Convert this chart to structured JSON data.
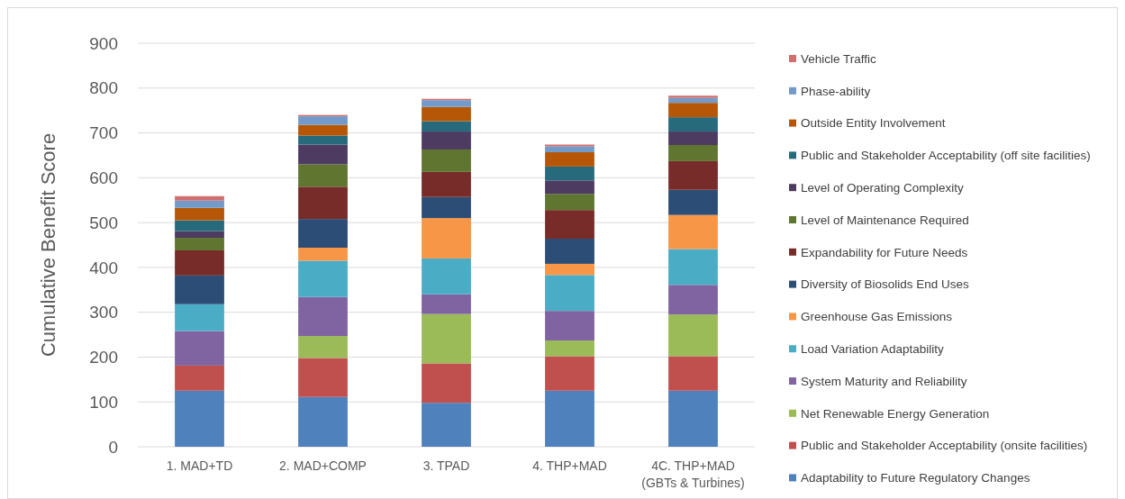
{
  "chart_data": {
    "type": "bar",
    "stacked": true,
    "ylabel": "Cumulative Benefit Score",
    "categories": [
      "1. MAD+TD",
      "2. MAD+COMP",
      "3. TPAD",
      "4. THP+MAD",
      "4C. THP+MAD (GBTs & Turbines)"
    ],
    "ylim": [
      0,
      900
    ],
    "yticks": [
      0,
      100,
      200,
      300,
      400,
      500,
      600,
      700,
      800,
      900
    ],
    "grid": "y",
    "legend": "right",
    "series": [
      {
        "name": "Adaptability to Future Regulatory Changes",
        "color": "#4f81bd",
        "values": [
          125,
          111,
          98,
          125,
          125
        ]
      },
      {
        "name": "Public and Stakeholder Acceptability (onsite facilities)",
        "color": "#c0504d",
        "values": [
          56,
          87,
          88,
          77,
          77
        ]
      },
      {
        "name": "Net Renewable Energy Generation",
        "color": "#9bbb59",
        "values": [
          0,
          49,
          110,
          35,
          93
        ]
      },
      {
        "name": "System Maturity and Reliability",
        "color": "#8064a2",
        "values": [
          77,
          87,
          44,
          66,
          66
        ]
      },
      {
        "name": "Load Variation Adaptability",
        "color": "#4bacc6",
        "values": [
          60,
          81,
          80,
          80,
          80
        ]
      },
      {
        "name": "Greenhouse Gas Emissions",
        "color": "#f79646",
        "values": [
          0,
          29,
          90,
          25,
          76
        ]
      },
      {
        "name": "Diversity of Biosolids End Uses",
        "color": "#2c4d75",
        "values": [
          64,
          64,
          47,
          56,
          56
        ]
      },
      {
        "name": "Expandability for Future Needs",
        "color": "#772c2a",
        "values": [
          56,
          72,
          56,
          64,
          64
        ]
      },
      {
        "name": "Level of Maintenance Required",
        "color": "#5f7530",
        "values": [
          28,
          50,
          50,
          36,
          36
        ]
      },
      {
        "name": "Level of Operating Complexity",
        "color": "#4d3b62",
        "values": [
          15,
          44,
          40,
          30,
          30
        ]
      },
      {
        "name": "Public and Stakeholder Acceptability (off site facilities)",
        "color": "#276a7c",
        "values": [
          24,
          20,
          23,
          31,
          32
        ]
      },
      {
        "name": "Outside Entity Involvement",
        "color": "#b65708",
        "values": [
          28,
          24,
          32,
          32,
          32
        ]
      },
      {
        "name": "Phase-ability",
        "color": "#729aca",
        "values": [
          16,
          19,
          15,
          13,
          11
        ]
      },
      {
        "name": "Vehicle Traffic",
        "color": "#d0706e",
        "values": [
          10,
          3,
          3,
          4,
          5
        ]
      }
    ]
  }
}
